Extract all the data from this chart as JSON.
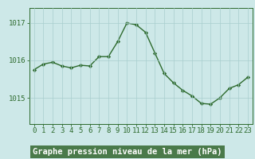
{
  "x": [
    0,
    1,
    2,
    3,
    4,
    5,
    6,
    7,
    8,
    9,
    10,
    11,
    12,
    13,
    14,
    15,
    16,
    17,
    18,
    19,
    20,
    21,
    22,
    23
  ],
  "y": [
    1015.75,
    1015.9,
    1015.95,
    1015.85,
    1015.8,
    1015.87,
    1015.85,
    1016.1,
    1016.1,
    1016.5,
    1017.0,
    1016.95,
    1016.75,
    1016.2,
    1015.65,
    1015.4,
    1015.2,
    1015.05,
    1014.85,
    1014.83,
    1015.0,
    1015.25,
    1015.35,
    1015.55
  ],
  "line_color": "#2d6a2d",
  "marker": "D",
  "marker_size": 2.2,
  "linewidth": 1.0,
  "bg_color": "#cde8e8",
  "plot_bg_color": "#cde8e8",
  "grid_color": "#a8cece",
  "xlabel": "Graphe pression niveau de la mer (hPa)",
  "xlabel_fontsize": 7.5,
  "xlabel_color": "#2d6a2d",
  "ytick_labels": [
    "1015",
    "1016",
    "1017"
  ],
  "ytick_vals": [
    1015,
    1016,
    1017
  ],
  "ylim": [
    1014.3,
    1017.4
  ],
  "xlim": [
    -0.5,
    23.5
  ],
  "tick_fontsize": 6.5,
  "tick_color": "#2d6a2d",
  "spine_color": "#2d6a2d",
  "bottom_bar_color": "#4a7a4a",
  "bottom_bar_height": 0.13
}
